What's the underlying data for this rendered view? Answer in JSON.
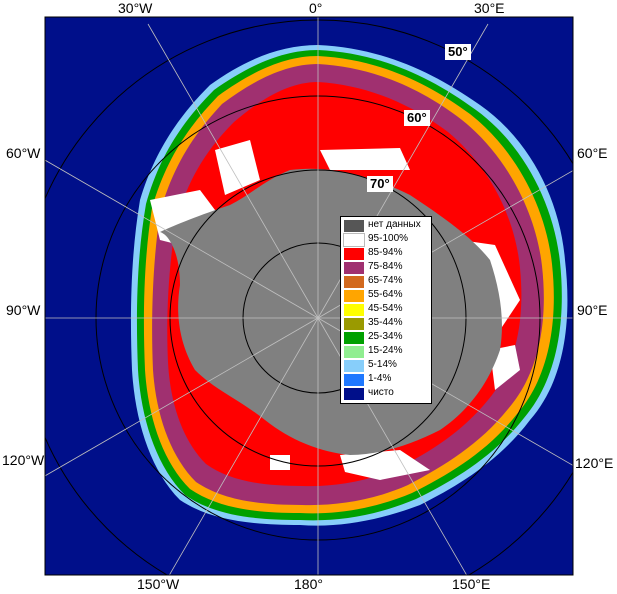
{
  "map": {
    "longitude_labels": {
      "top": [
        "30°W",
        "0°",
        "30°E"
      ],
      "left": [
        "60°W",
        "90°W",
        "120°W"
      ],
      "right": [
        "60°E",
        "90°E",
        "120°E"
      ],
      "bottom": [
        "150°W",
        "180°",
        "150°E"
      ]
    },
    "latitude_labels": [
      "50°",
      "60°",
      "70°"
    ],
    "colors": {
      "ocean": "#000f8a",
      "land": "#808080",
      "frame": "#000000"
    }
  },
  "legend": {
    "items": [
      {
        "label": "нет данных",
        "color": "#565656"
      },
      {
        "label": "95-100%",
        "color": "#ffffff"
      },
      {
        "label": "85-94%",
        "color": "#ff0000"
      },
      {
        "label": "75-84%",
        "color": "#a03070"
      },
      {
        "label": "65-74%",
        "color": "#d2691e"
      },
      {
        "label": "55-64%",
        "color": "#ffa500"
      },
      {
        "label": "45-54%",
        "color": "#ffff00"
      },
      {
        "label": "35-44%",
        "color": "#9a9a00"
      },
      {
        "label": "25-34%",
        "color": "#00a000"
      },
      {
        "label": "15-24%",
        "color": "#90ee90"
      },
      {
        "label": "5-14%",
        "color": "#87cefa"
      },
      {
        "label": "1-4%",
        "color": "#1e78ff"
      },
      {
        "label": "чисто",
        "color": "#000f8a"
      }
    ]
  }
}
